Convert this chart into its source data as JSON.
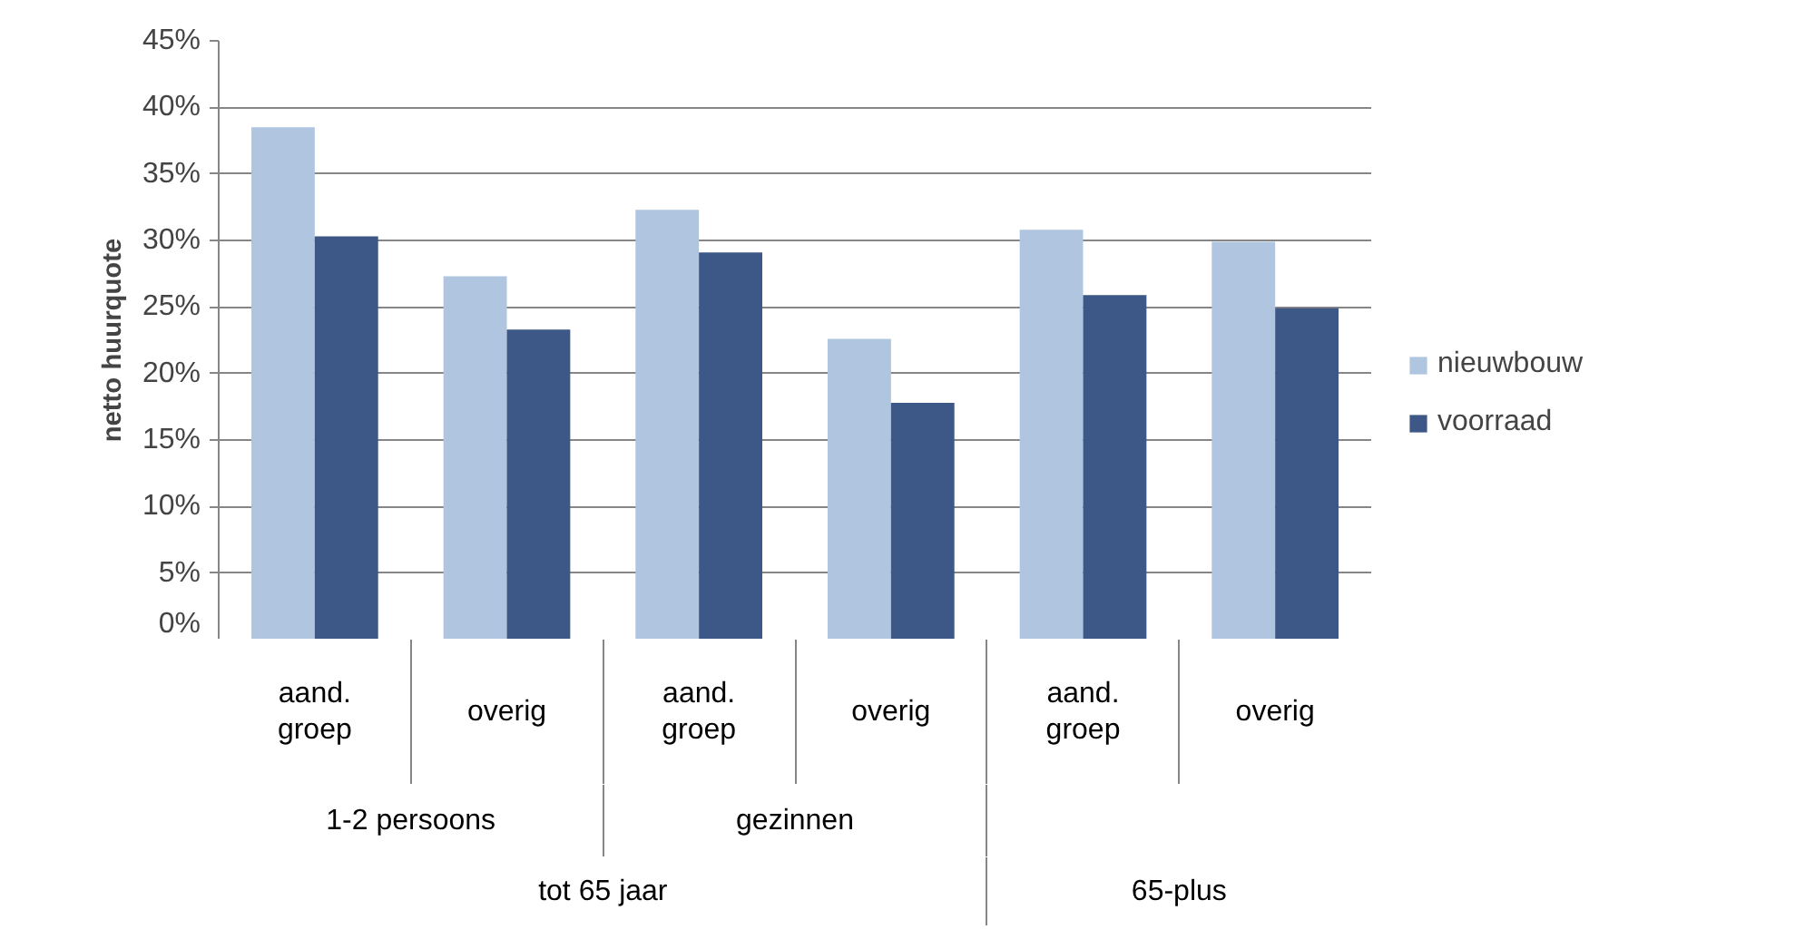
{
  "chart_data": {
    "type": "bar",
    "ylabel": "netto huurquote",
    "categories": [
      "aand. groep",
      "overig",
      "aand. groep",
      "overig",
      "aand. groep",
      "overig"
    ],
    "series": [
      {
        "name": "nieuwbouw",
        "color": "#afc5e0",
        "values": [
          38.5,
          27.3,
          32.3,
          22.6,
          30.8,
          29.9
        ]
      },
      {
        "name": "voorraad",
        "color": "#3d5786",
        "values": [
          30.3,
          23.3,
          29.1,
          17.8,
          25.9,
          24.9
        ]
      }
    ],
    "annotations": [
      "1-2 persoons",
      "gezinnen",
      "tot 65 jaar",
      "65-plus"
    ],
    "ylim": [
      0,
      45
    ],
    "yticks": [
      {
        "value": 0,
        "label": "0%"
      },
      {
        "value": 5,
        "label": "5%"
      },
      {
        "value": 10,
        "label": "10%"
      },
      {
        "value": 15,
        "label": "15%"
      },
      {
        "value": 20,
        "label": "20%"
      },
      {
        "value": 25,
        "label": "25%"
      },
      {
        "value": 30,
        "label": "30%"
      },
      {
        "value": 35,
        "label": "35%"
      },
      {
        "value": 40,
        "label": "40%"
      },
      {
        "value": 45,
        "label": "45%"
      }
    ],
    "grid": "y",
    "legend": "right"
  }
}
